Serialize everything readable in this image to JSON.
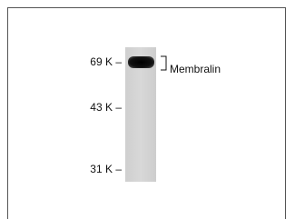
{
  "markers": [
    "69 K –",
    "43 K –",
    "31 K –"
  ],
  "band_label": "Membralin"
}
